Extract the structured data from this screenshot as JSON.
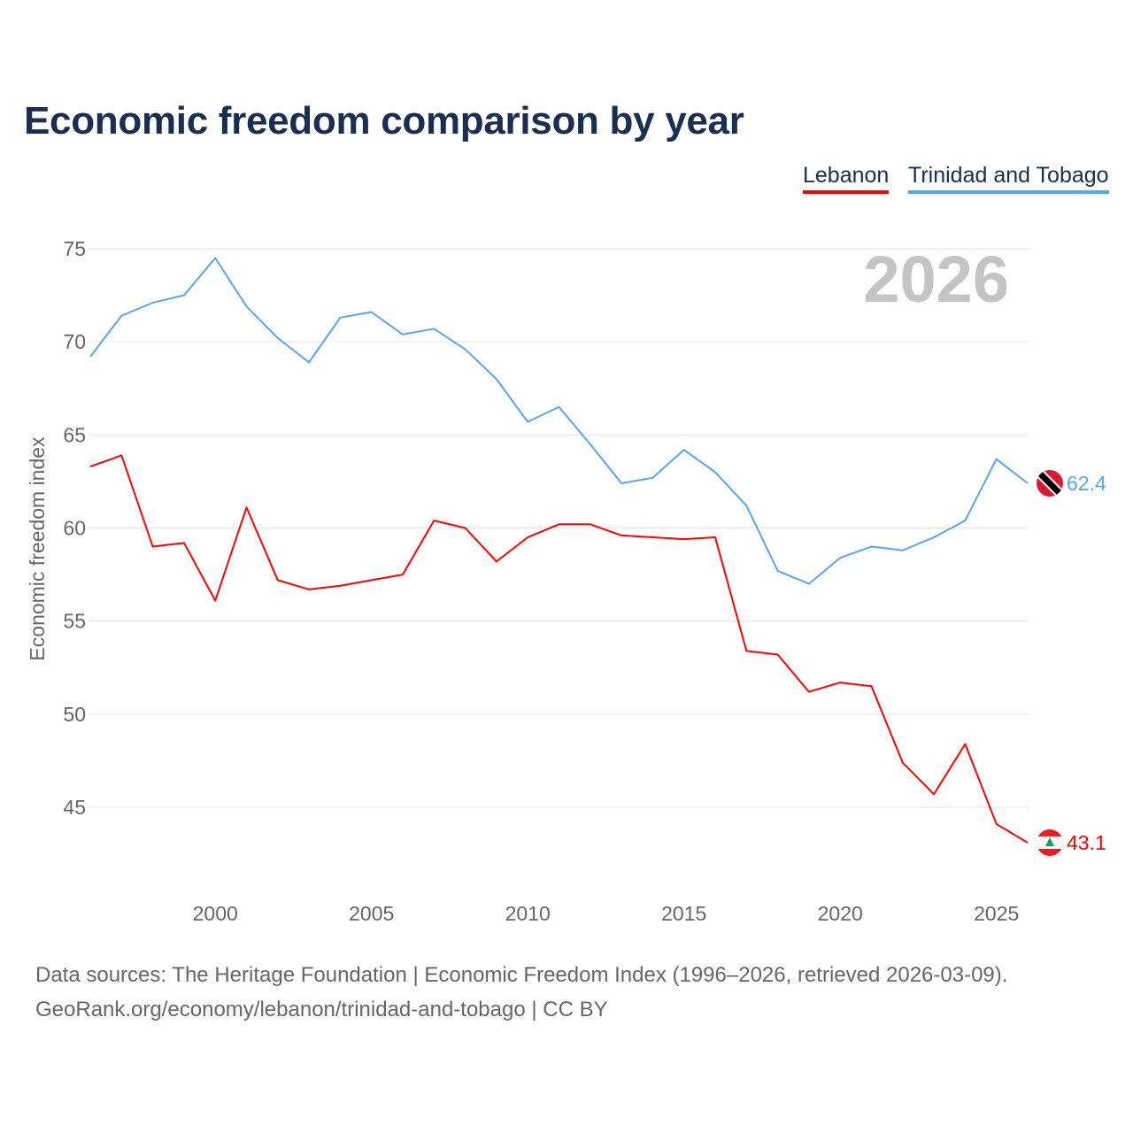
{
  "chart_data": {
    "type": "line",
    "title": "Economic freedom comparison by year",
    "ylabel": "Economic freedom index",
    "xlabel": "",
    "ylim": [
      40,
      77
    ],
    "xlim": [
      1996,
      2026
    ],
    "yticks": [
      45,
      50,
      55,
      60,
      65,
      70,
      75
    ],
    "xticks": [
      2000,
      2005,
      2010,
      2015,
      2020,
      2025
    ],
    "grid": true,
    "legend_position": "top-right",
    "year_label": "2026",
    "x": [
      1996,
      1997,
      1998,
      1999,
      2000,
      2001,
      2002,
      2003,
      2004,
      2005,
      2006,
      2007,
      2008,
      2009,
      2010,
      2011,
      2012,
      2013,
      2014,
      2015,
      2016,
      2017,
      2018,
      2019,
      2020,
      2021,
      2022,
      2023,
      2024,
      2025,
      2026
    ],
    "series": [
      {
        "name": "Lebanon",
        "color": "#ff0000",
        "end_label": "43.1",
        "values": [
          63.3,
          63.9,
          59.0,
          59.2,
          56.1,
          61.1,
          57.2,
          56.7,
          56.9,
          57.2,
          57.5,
          60.4,
          60.0,
          58.2,
          59.5,
          60.2,
          60.2,
          59.6,
          59.5,
          59.4,
          59.5,
          53.4,
          53.2,
          51.2,
          51.7,
          51.5,
          47.4,
          45.7,
          48.4,
          44.1,
          43.1
        ]
      },
      {
        "name": "Trinidad and Tobago",
        "color": "#5aa5e8",
        "end_label": "62.4",
        "values": [
          69.2,
          71.4,
          72.1,
          72.5,
          74.5,
          71.9,
          70.2,
          68.9,
          71.3,
          71.6,
          70.4,
          70.7,
          69.6,
          68.0,
          65.7,
          66.5,
          64.5,
          62.4,
          62.7,
          64.2,
          63.0,
          61.2,
          57.7,
          57.0,
          58.4,
          59.0,
          58.8,
          59.5,
          60.4,
          63.7,
          62.4
        ]
      }
    ]
  },
  "footer": {
    "line1": "Data sources: The Heritage Foundation | Economic Freedom Index (1996–2026, retrieved 2026-03-09).",
    "line2": "GeoRank.org/economy/lebanon/trinidad-and-tobago | CC BY"
  }
}
